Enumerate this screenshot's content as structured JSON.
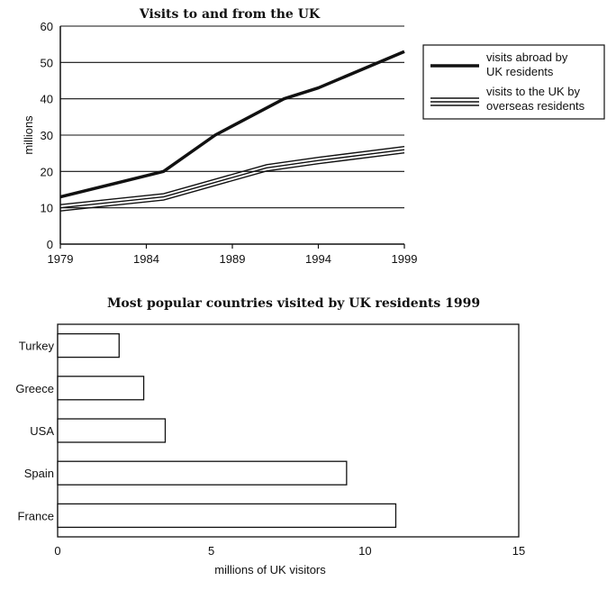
{
  "chart_data": [
    {
      "type": "line",
      "title": "Visits to and from the UK",
      "ylabel": "millions",
      "xlabel": "",
      "ylim": [
        0,
        60
      ],
      "xlim": [
        1979,
        1999
      ],
      "yticks": [
        "0",
        "10",
        "20",
        "30",
        "40",
        "50",
        "60"
      ],
      "xticks": [
        "1979",
        "1984",
        "1989",
        "1994",
        "1999"
      ],
      "grid": "horizontal",
      "legend_position": "right",
      "series": [
        {
          "name": "visits abroad by UK residents",
          "line_style": "thick",
          "x": [
            1979,
            1985,
            1988,
            1992,
            1994,
            1999
          ],
          "y": [
            13,
            20,
            30,
            40,
            43,
            53
          ]
        },
        {
          "name": "visits to the UK by overseas residents",
          "line_style": "triple",
          "x": [
            1979,
            1985,
            1988,
            1991,
            1994,
            1999
          ],
          "y": [
            10,
            13,
            17,
            21,
            23,
            26
          ]
        }
      ]
    },
    {
      "type": "bar",
      "orientation": "horizontal",
      "title": "Most popular countries visited by UK residents 1999",
      "xlabel": "millions of UK visitors",
      "ylabel": "",
      "xlim": [
        0,
        15
      ],
      "xticks": [
        "0",
        "5",
        "10",
        "15"
      ],
      "categories": [
        "Turkey",
        "Greece",
        "USA",
        "Spain",
        "France"
      ],
      "values": [
        2.0,
        2.8,
        3.5,
        9.4,
        11.0
      ]
    }
  ]
}
